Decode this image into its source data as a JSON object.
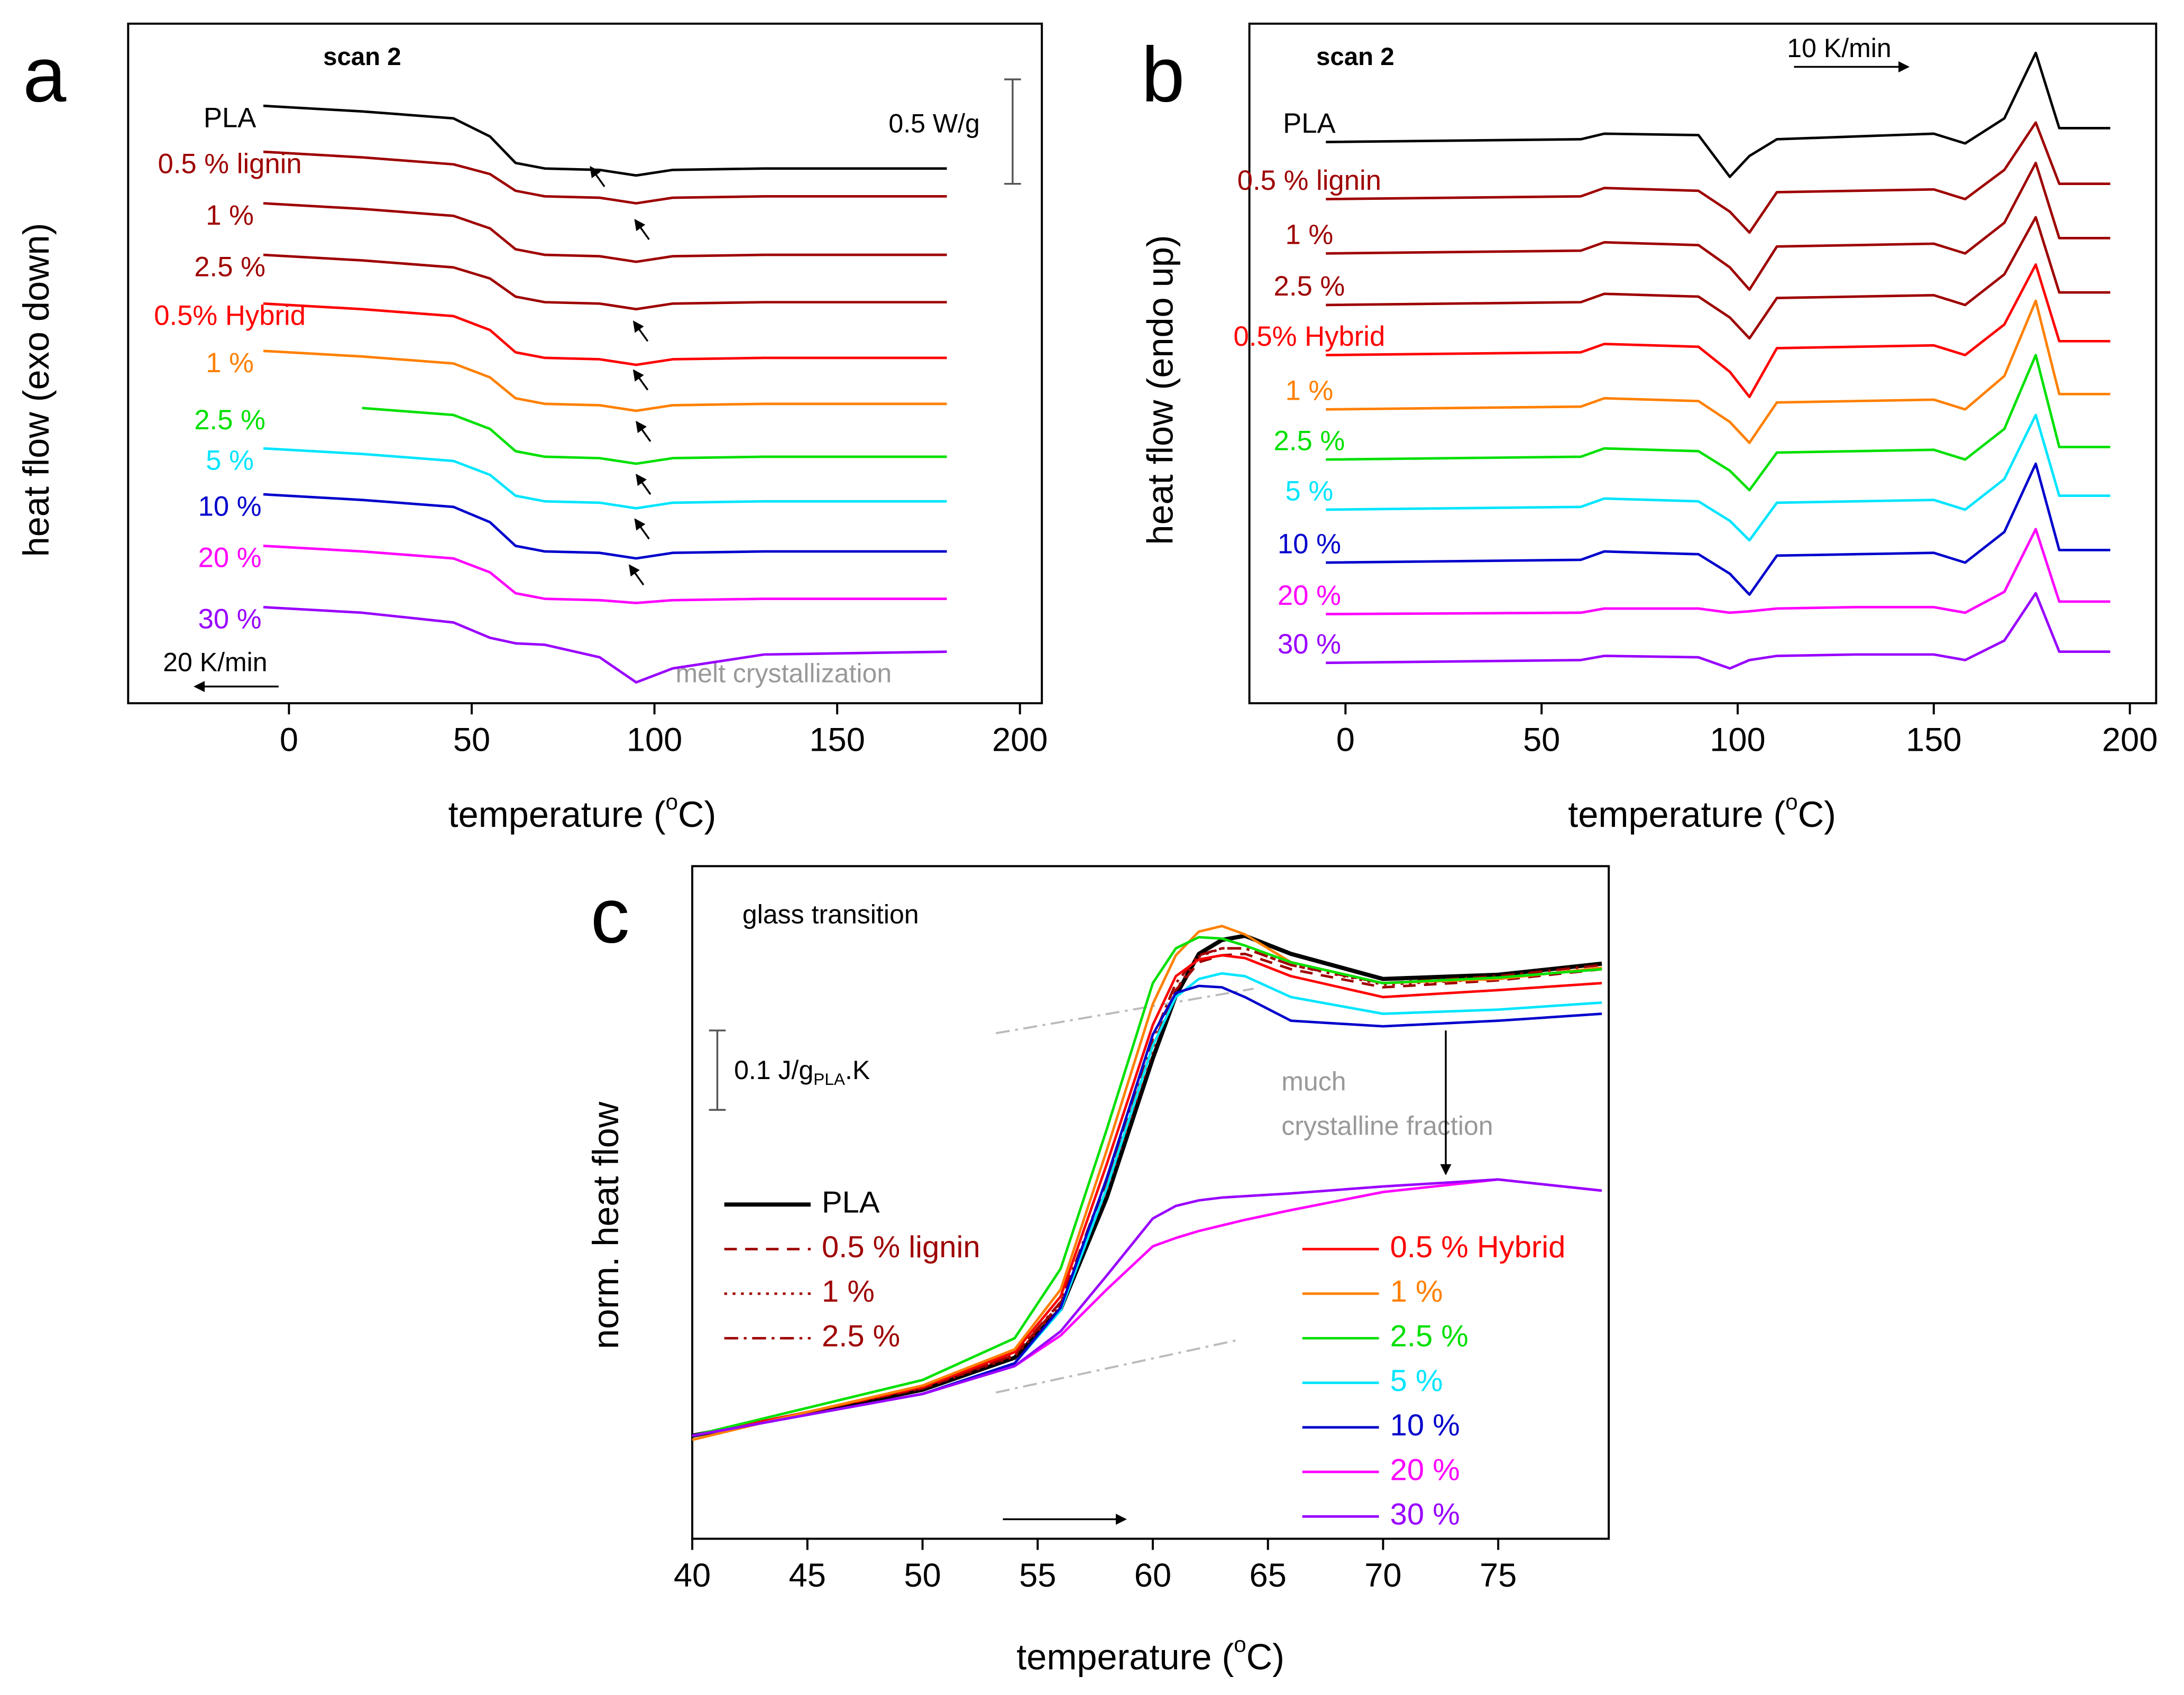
{
  "chart_data": [
    {
      "type": "line",
      "panel": "a",
      "xlabel": [
        "temperature (",
        "o",
        "C)"
      ],
      "ylabel": "heat flow (exo down)",
      "annotations": [
        "scan 2",
        "0.5 W/g",
        "20 K/min",
        "melt crystallization"
      ],
      "legend": "inline",
      "xlim": [
        -44,
        206
      ],
      "xticks": [
        0,
        50,
        100,
        150,
        200
      ],
      "ylim": [
        0,
        4.88
      ],
      "x": [
        -7,
        20,
        45,
        55,
        62,
        70,
        85,
        95,
        105,
        130,
        180
      ],
      "series": [
        {
          "name": "PLA",
          "color": "#000000",
          "values": [
            4.29,
            4.25,
            4.2,
            4.07,
            3.88,
            3.84,
            3.83,
            3.79,
            3.83,
            3.84,
            3.84
          ]
        },
        {
          "name": "0.5 % lignin",
          "color": "#9e0000",
          "values": [
            3.96,
            3.92,
            3.87,
            3.8,
            3.68,
            3.64,
            3.63,
            3.59,
            3.63,
            3.64,
            3.64
          ]
        },
        {
          "name": "1 %",
          "color": "#9e0000",
          "values": [
            3.59,
            3.55,
            3.5,
            3.41,
            3.26,
            3.22,
            3.21,
            3.17,
            3.21,
            3.22,
            3.22
          ]
        },
        {
          "name": "2.5 %",
          "color": "#9e0000",
          "values": [
            3.22,
            3.18,
            3.13,
            3.05,
            2.92,
            2.88,
            2.87,
            2.83,
            2.87,
            2.88,
            2.88
          ]
        },
        {
          "name": "0.5% Hybrid",
          "color": "#ff0000",
          "values": [
            2.87,
            2.83,
            2.78,
            2.68,
            2.52,
            2.48,
            2.47,
            2.43,
            2.47,
            2.48,
            2.48
          ]
        },
        {
          "name": "1 %",
          "color": "#ff8000",
          "values": [
            2.53,
            2.49,
            2.44,
            2.34,
            2.19,
            2.15,
            2.14,
            2.1,
            2.14,
            2.15,
            2.15
          ]
        },
        {
          "name": "2.5 %",
          "color": "#00e000",
          "values": [
            null,
            2.12,
            2.07,
            1.97,
            1.81,
            1.77,
            1.76,
            1.72,
            1.76,
            1.77,
            1.77
          ]
        },
        {
          "name": "5 %",
          "color": "#00e5ff",
          "values": [
            1.83,
            1.79,
            1.74,
            1.64,
            1.49,
            1.45,
            1.44,
            1.4,
            1.44,
            1.45,
            1.45
          ]
        },
        {
          "name": "10 %",
          "color": "#0000cc",
          "values": [
            1.5,
            1.46,
            1.41,
            1.3,
            1.13,
            1.09,
            1.08,
            1.04,
            1.08,
            1.09,
            1.09
          ]
        },
        {
          "name": "20 %",
          "color": "#ff00ff",
          "values": [
            1.13,
            1.09,
            1.04,
            0.94,
            0.79,
            0.75,
            0.74,
            0.72,
            0.74,
            0.75,
            0.75
          ]
        },
        {
          "name": "30 %",
          "color": "#9900ff",
          "values": [
            0.69,
            0.65,
            0.58,
            0.47,
            0.43,
            0.42,
            0.33,
            0.15,
            0.25,
            0.35,
            0.37
          ]
        }
      ]
    },
    {
      "type": "line",
      "panel": "b",
      "xlabel": [
        "temperature (",
        "o",
        "C)"
      ],
      "ylabel": "heat flow (endo up)",
      "annotations": [
        "scan 2",
        "10 K/min"
      ],
      "legend": "inline",
      "xlim": [
        -24.5,
        206.7
      ],
      "xticks": [
        0,
        50,
        100,
        150,
        200
      ],
      "ylim": [
        0,
        4.88
      ],
      "x": [
        -5,
        60,
        66,
        90,
        98,
        103,
        110,
        130,
        150,
        158,
        168,
        176,
        182,
        195
      ],
      "series": [
        {
          "name": "PLA",
          "color": "#000000",
          "values": [
            4.03,
            4.05,
            4.09,
            4.08,
            3.78,
            3.93,
            4.05,
            4.07,
            4.09,
            4.02,
            4.2,
            4.67,
            4.13,
            4.13
          ]
        },
        {
          "name": "0.5 % lignin",
          "color": "#9e0000",
          "values": [
            3.62,
            3.64,
            3.7,
            3.68,
            3.53,
            3.38,
            3.67,
            3.68,
            3.69,
            3.62,
            3.83,
            4.17,
            3.73,
            3.73
          ]
        },
        {
          "name": "1 %",
          "color": "#9e0000",
          "values": [
            3.23,
            3.25,
            3.31,
            3.29,
            3.13,
            2.97,
            3.28,
            3.29,
            3.3,
            3.23,
            3.45,
            3.88,
            3.34,
            3.34
          ]
        },
        {
          "name": "2.5 %",
          "color": "#9e0000",
          "values": [
            2.86,
            2.88,
            2.94,
            2.92,
            2.77,
            2.62,
            2.91,
            2.92,
            2.93,
            2.86,
            3.08,
            3.49,
            2.95,
            2.95
          ]
        },
        {
          "name": "0.5% Hybrid",
          "color": "#ff0000",
          "values": [
            2.5,
            2.52,
            2.58,
            2.56,
            2.38,
            2.2,
            2.55,
            2.56,
            2.57,
            2.5,
            2.72,
            3.15,
            2.6,
            2.6
          ]
        },
        {
          "name": "1 %",
          "color": "#ff8000",
          "values": [
            2.11,
            2.13,
            2.19,
            2.17,
            2.02,
            1.87,
            2.16,
            2.17,
            2.18,
            2.11,
            2.35,
            2.89,
            2.22,
            2.22
          ]
        },
        {
          "name": "2.5 %",
          "color": "#00e000",
          "values": [
            1.75,
            1.77,
            1.83,
            1.81,
            1.67,
            1.53,
            1.8,
            1.81,
            1.82,
            1.75,
            1.97,
            2.5,
            1.84,
            1.84
          ]
        },
        {
          "name": "5 %",
          "color": "#00e5ff",
          "values": [
            1.39,
            1.41,
            1.47,
            1.45,
            1.31,
            1.17,
            1.44,
            1.45,
            1.46,
            1.39,
            1.61,
            2.07,
            1.49,
            1.49
          ]
        },
        {
          "name": "10 %",
          "color": "#0000cc",
          "values": [
            1.01,
            1.03,
            1.09,
            1.07,
            0.93,
            0.78,
            1.06,
            1.07,
            1.08,
            1.01,
            1.23,
            1.72,
            1.1,
            1.1
          ]
        },
        {
          "name": "20 %",
          "color": "#ff00ff",
          "values": [
            0.64,
            0.65,
            0.68,
            0.68,
            0.65,
            0.66,
            0.68,
            0.69,
            0.69,
            0.65,
            0.8,
            1.25,
            0.73,
            0.73
          ]
        },
        {
          "name": "30 %",
          "color": "#9900ff",
          "values": [
            0.29,
            0.31,
            0.34,
            0.33,
            0.25,
            0.31,
            0.34,
            0.35,
            0.35,
            0.31,
            0.45,
            0.79,
            0.37,
            0.37
          ]
        }
      ]
    },
    {
      "type": "line",
      "panel": "c",
      "xlabel": [
        "temperature (",
        "o",
        "C)"
      ],
      "ylabel": "norm. heat flow",
      "annotations": [
        "glass transition",
        "much",
        "crystalline  fraction"
      ],
      "scale_label": [
        "0.1 J/g",
        "PLA",
        ".K"
      ],
      "legend": "lower center",
      "xlim": [
        40,
        79.8
      ],
      "xticks": [
        40,
        45,
        50,
        55,
        60,
        65,
        70,
        75
      ],
      "ylim": [
        0.26,
        5.09
      ],
      "x": [
        40,
        45,
        50,
        54,
        56,
        58,
        60,
        61,
        62,
        63,
        64,
        66,
        70,
        75,
        79.5
      ],
      "series": [
        {
          "name": "PLA",
          "color": "#000000",
          "linewidth": 3,
          "values": [
            1.0,
            1.16,
            1.33,
            1.56,
            1.91,
            2.71,
            3.71,
            4.16,
            4.46,
            4.56,
            4.59,
            4.46,
            4.28,
            4.31,
            4.39
          ]
        },
        {
          "name": "0.5 % lignin",
          "color": "#9e0000",
          "dash": "dashed",
          "values": [
            1.0,
            1.17,
            1.34,
            1.58,
            1.95,
            2.8,
            3.8,
            4.2,
            4.4,
            4.45,
            4.46,
            4.35,
            4.22,
            4.27,
            4.35
          ]
        },
        {
          "name": "1 %",
          "color": "#9e0000",
          "dash": "dotted",
          "values": [
            1.0,
            1.17,
            1.34,
            1.57,
            1.93,
            2.76,
            3.77,
            4.2,
            4.44,
            4.5,
            4.5,
            4.38,
            4.24,
            4.28,
            4.36
          ]
        },
        {
          "name": "2.5 %",
          "color": "#9e0000",
          "dash": "dashdot",
          "values": [
            1.0,
            1.17,
            1.35,
            1.58,
            1.96,
            2.84,
            3.85,
            4.25,
            4.45,
            4.5,
            4.5,
            4.38,
            4.25,
            4.3,
            4.38
          ]
        },
        {
          "name": "0.5 % Hybrid",
          "color": "#ff0000",
          "values": [
            1.0,
            1.17,
            1.35,
            1.6,
            2.0,
            2.95,
            3.95,
            4.3,
            4.42,
            4.45,
            4.43,
            4.3,
            4.15,
            4.2,
            4.25
          ]
        },
        {
          "name": "1 %",
          "color": "#ff8000",
          "values": [
            0.97,
            1.17,
            1.36,
            1.62,
            2.05,
            3.05,
            4.1,
            4.45,
            4.62,
            4.66,
            4.6,
            4.4,
            4.25,
            4.28,
            4.36
          ]
        },
        {
          "name": "2.5 %",
          "color": "#00e000",
          "values": [
            1.0,
            1.2,
            1.4,
            1.7,
            2.2,
            3.2,
            4.25,
            4.5,
            4.58,
            4.57,
            4.52,
            4.4,
            4.25,
            4.29,
            4.35
          ]
        },
        {
          "name": "5 %",
          "color": "#00e5ff",
          "values": [
            1.0,
            1.15,
            1.3,
            1.52,
            1.9,
            2.78,
            3.8,
            4.15,
            4.28,
            4.32,
            4.3,
            4.15,
            4.03,
            4.06,
            4.11
          ]
        },
        {
          "name": "10 %",
          "color": "#0000cc",
          "values": [
            1.0,
            1.15,
            1.3,
            1.52,
            1.92,
            2.85,
            3.88,
            4.18,
            4.23,
            4.22,
            4.15,
            3.98,
            3.94,
            3.98,
            4.03
          ]
        },
        {
          "name": "20 %",
          "color": "#ff00ff",
          "values": [
            1.0,
            1.15,
            1.3,
            1.5,
            1.72,
            2.05,
            2.36,
            2.42,
            2.47,
            2.51,
            2.55,
            2.62,
            2.75,
            2.84,
            2.76
          ]
        },
        {
          "name": "30 %",
          "color": "#9900ff",
          "values": [
            1.0,
            1.15,
            1.3,
            1.5,
            1.75,
            2.15,
            2.56,
            2.65,
            2.69,
            2.71,
            2.72,
            2.74,
            2.79,
            2.84,
            2.76
          ]
        }
      ]
    }
  ]
}
